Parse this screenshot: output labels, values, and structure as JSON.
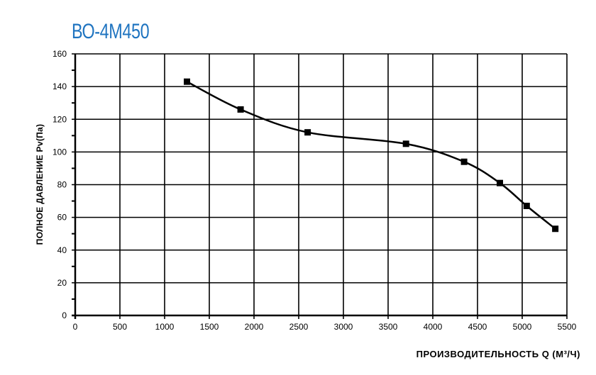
{
  "chart_data": {
    "type": "line",
    "title": "ВО-4М450",
    "xlabel": "ПРОИЗВОДИТЕЛЬНОСТЬ  Q  (М³/Ч)",
    "ylabel": "ПОЛНОЕ ДАВЛЕНИЕ   Pv(Па)",
    "xlim": [
      0,
      5500
    ],
    "ylim": [
      0,
      160
    ],
    "xticks": [
      0,
      500,
      1000,
      1500,
      2000,
      2500,
      3000,
      3500,
      4000,
      4500,
      5000,
      5500
    ],
    "yticks": [
      0,
      20,
      40,
      60,
      80,
      100,
      120,
      140,
      160
    ],
    "grid": true,
    "marker": "square",
    "line_color": "#000000",
    "title_color": "#1f74c0",
    "series": [
      {
        "x": [
          1250,
          1850,
          2600,
          3700,
          4350,
          4750,
          5050,
          5370
        ],
        "y": [
          143,
          126,
          112,
          105,
          94,
          81,
          67,
          53
        ]
      }
    ]
  }
}
